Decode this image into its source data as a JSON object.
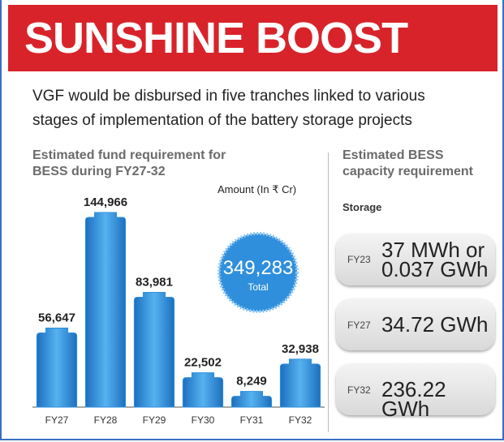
{
  "header": {
    "title": "SUNSHINE BOOST"
  },
  "subtitle": "VGF would be disbursed in five tranches linked to various stages of implementation of the battery storage projects",
  "chart_data": {
    "type": "bar",
    "title": "Estimated fund requirement for BESS during FY27-32",
    "unit_label": "Amount (In ₹ Cr)",
    "categories": [
      "FY27",
      "FY28",
      "FY29",
      "FY30",
      "FY31",
      "FY32"
    ],
    "values": [
      56647,
      144966,
      83981,
      22502,
      8249,
      32938
    ],
    "value_labels": [
      "56,647",
      "144,966",
      "83,981",
      "22,502",
      "8,249",
      "32,938"
    ],
    "color": "#2f8fdc",
    "total": {
      "value": 349283,
      "value_label": "349,283",
      "label": "Total"
    }
  },
  "capacity": {
    "title": "Estimated BESS capacity requirement",
    "subtitle": "Storage",
    "rows": [
      {
        "year": "FY23",
        "amount": "37 MWh or 0.037 GWh"
      },
      {
        "year": "FY27",
        "amount": "34.72 GWh"
      },
      {
        "year": "FY32",
        "amount": "236.22 GWh"
      }
    ]
  }
}
